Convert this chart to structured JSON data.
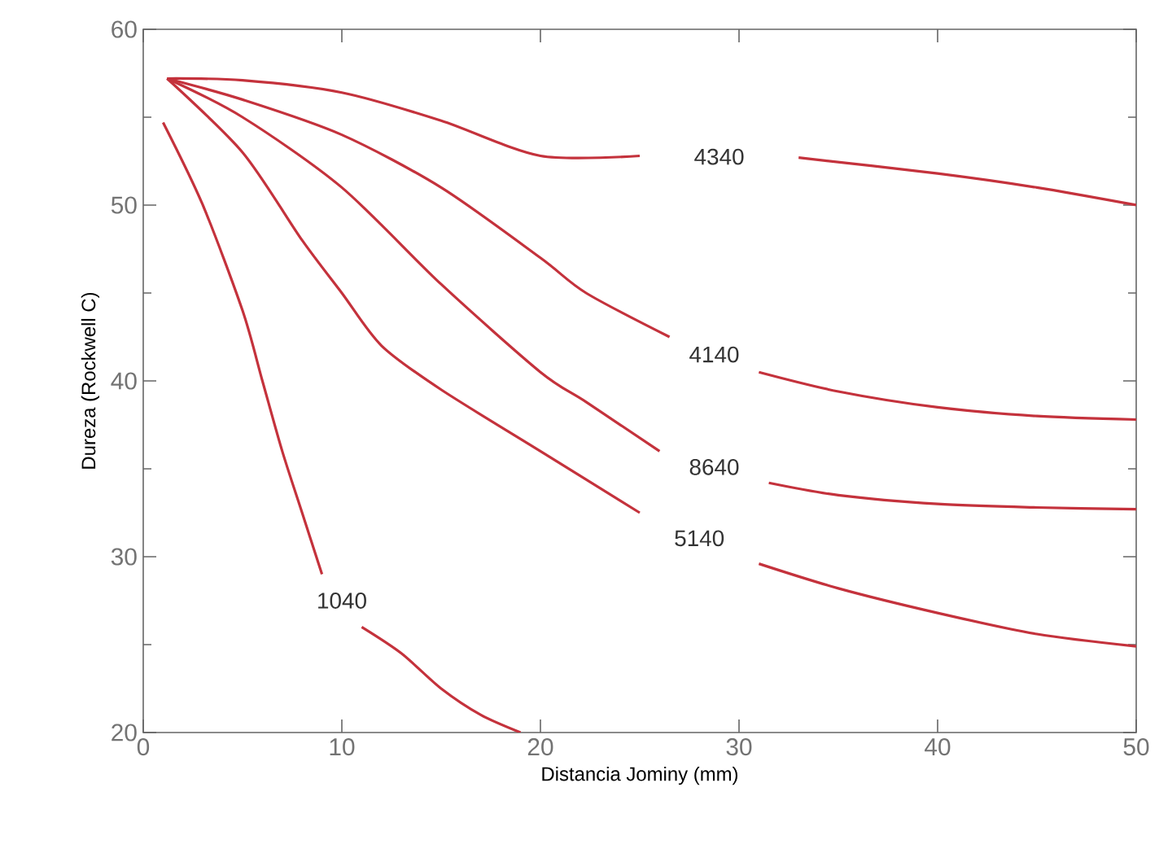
{
  "chart_data": {
    "type": "line",
    "xlabel": "Distancia Jominy (mm)",
    "ylabel": "Dureza (Rockwell C)",
    "xlim": [
      0,
      50
    ],
    "ylim": [
      20,
      60
    ],
    "xticks": [
      0,
      10,
      20,
      30,
      40,
      50
    ],
    "yticks": [
      20,
      30,
      40,
      50,
      60
    ],
    "grid": false,
    "legend": false,
    "marker": "none",
    "line_style": "solid",
    "series": [
      {
        "name": "4340",
        "color": "#c4323c",
        "x": [
          1.2,
          5,
          10,
          15,
          20,
          25,
          28,
          33,
          40,
          45,
          50
        ],
        "values": [
          57.2,
          57.1,
          56.4,
          54.8,
          52.8,
          52.8,
          null,
          52.7,
          51.8,
          51.0,
          50.0
        ]
      },
      {
        "name": "4140",
        "color": "#c4323c",
        "x": [
          1.2,
          5,
          10,
          15,
          20,
          22.3,
          26.5,
          29,
          31,
          35,
          40,
          45,
          50
        ],
        "values": [
          57.2,
          56.0,
          54.0,
          51.0,
          47.0,
          45.0,
          42.5,
          null,
          40.5,
          39.4,
          38.5,
          38.0,
          37.8
        ]
      },
      {
        "name": "8640",
        "color": "#c4323c",
        "x": [
          1.2,
          5,
          10,
          15,
          20,
          22.3,
          26,
          29,
          31.5,
          35,
          40,
          45,
          50
        ],
        "values": [
          57.2,
          55.0,
          51.0,
          45.5,
          40.5,
          38.8,
          36.0,
          null,
          34.2,
          33.5,
          33.0,
          32.8,
          32.7
        ]
      },
      {
        "name": "5140",
        "color": "#c4323c",
        "x": [
          1.2,
          5,
          8,
          10,
          12,
          15,
          20,
          25,
          28,
          31,
          35,
          40,
          45,
          50
        ],
        "values": [
          57.2,
          53.0,
          48.0,
          45.0,
          42.0,
          39.5,
          36.0,
          32.5,
          null,
          29.6,
          28.2,
          26.8,
          25.6,
          24.9
        ]
      },
      {
        "name": "1040",
        "color": "#c4323c",
        "x": [
          1,
          3,
          5,
          6,
          7,
          8,
          9,
          10,
          11,
          13,
          15,
          17,
          19
        ],
        "values": [
          54.7,
          50.0,
          44.0,
          40.0,
          36.0,
          32.5,
          29.0,
          null,
          26.0,
          24.5,
          22.5,
          21.0,
          20.0
        ]
      }
    ]
  }
}
